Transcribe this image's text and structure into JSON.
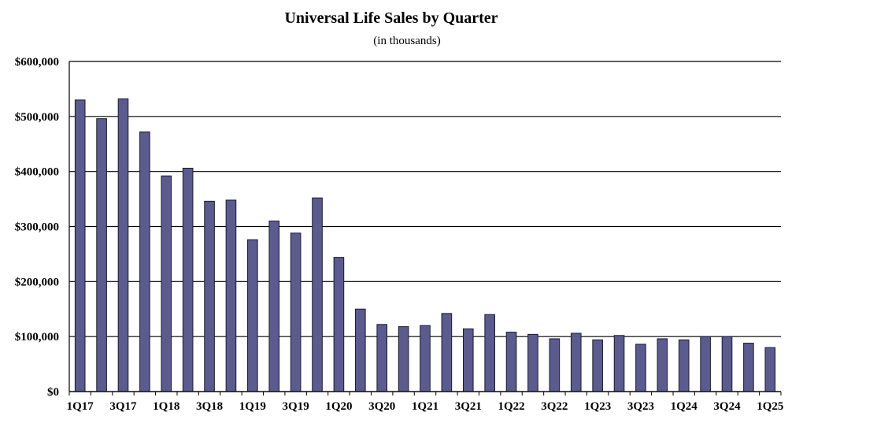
{
  "chart_data": {
    "type": "bar",
    "title": "Universal Life Sales by Quarter",
    "subtitle": "(in thousands)",
    "xlabel": "",
    "ylabel": "",
    "ylim": [
      0,
      600000
    ],
    "yticks": [
      0,
      100000,
      200000,
      300000,
      400000,
      500000,
      600000
    ],
    "ytick_labels": [
      "$0",
      "$100,000",
      "$200,000",
      "$300,000",
      "$400,000",
      "$500,000",
      "$600,000"
    ],
    "grid": true,
    "legend": "none",
    "categories": [
      "1Q17",
      "2Q17",
      "3Q17",
      "4Q17",
      "1Q18",
      "2Q18",
      "3Q18",
      "4Q18",
      "1Q19",
      "2Q19",
      "3Q19",
      "4Q19",
      "1Q20",
      "2Q20",
      "3Q20",
      "4Q20",
      "1Q21",
      "2Q21",
      "3Q21",
      "4Q21",
      "1Q22",
      "2Q22",
      "3Q22",
      "4Q22",
      "1Q23",
      "2Q23",
      "3Q23",
      "4Q23",
      "1Q24",
      "2Q24",
      "3Q24",
      "4Q24",
      "1Q25"
    ],
    "visible_tick_labels": [
      "1Q17",
      "3Q17",
      "1Q18",
      "3Q18",
      "1Q19",
      "3Q19",
      "1Q20",
      "3Q20",
      "1Q21",
      "3Q21",
      "1Q22",
      "3Q22",
      "1Q23",
      "3Q23",
      "1Q24",
      "3Q24",
      "1Q25"
    ],
    "values": [
      530000,
      496000,
      532000,
      472000,
      392000,
      406000,
      346000,
      348000,
      276000,
      310000,
      288000,
      352000,
      244000,
      150000,
      122000,
      118000,
      120000,
      142000,
      114000,
      140000,
      108000,
      104000,
      96000,
      106000,
      94000,
      102000,
      86000,
      96000,
      94000,
      100000,
      100000,
      88000,
      80000
    ],
    "colors": {
      "bar_fill": "#5b5b8f",
      "bar_stroke": "#1a1a2e",
      "grid": "#000000"
    }
  }
}
